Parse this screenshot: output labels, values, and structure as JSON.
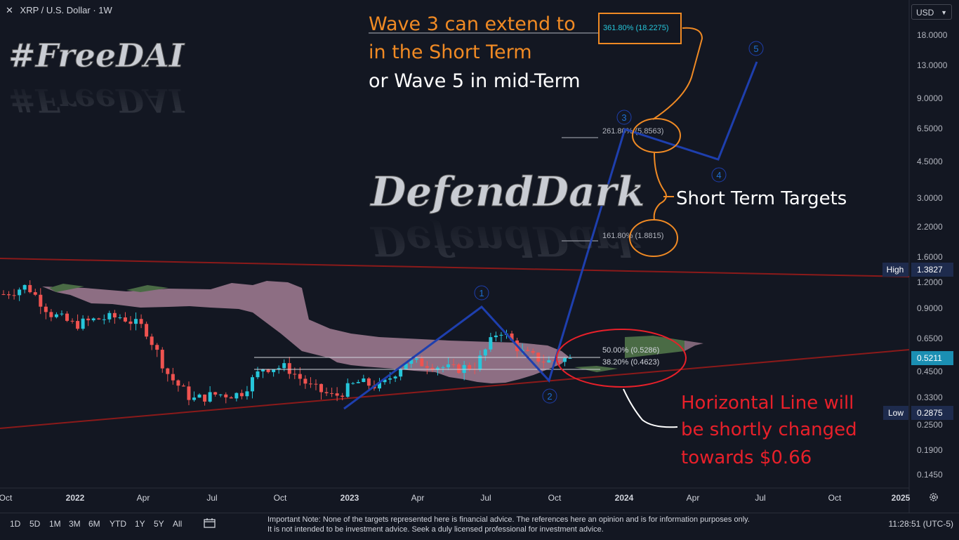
{
  "header": {
    "close_glyph": "✕",
    "symbol_title": "XRP / U.S. Dollar · 1W"
  },
  "currency_select": {
    "value": "USD"
  },
  "price_axis": {
    "ticks": [
      "18.0000",
      "13.0000",
      "9.0000",
      "6.5000",
      "4.5000",
      "3.0000",
      "2.2000",
      "1.6000",
      "1.2000",
      "0.9000",
      "0.6500",
      "0.4500",
      "0.3300",
      "0.2500",
      "0.1900",
      "0.1450"
    ],
    "labels": {
      "high_tag": "High",
      "high_value": "1.3827",
      "current_value": "0.5211",
      "low_tag": "Low",
      "low_value": "0.2875"
    }
  },
  "time_axis": {
    "ticks": [
      "Oct",
      "2022",
      "Apr",
      "Jul",
      "Oct",
      "2023",
      "Apr",
      "Jul",
      "Oct",
      "2024",
      "Apr",
      "Jul",
      "Oct",
      "2025"
    ]
  },
  "annotations": {
    "watermark_top": "#FreeDAI",
    "watermark_mid": "DefendDark",
    "headline_1": "Wave 3 can extend to",
    "headline_2": "in the Short Term",
    "headline_3": "or Wave 5 in mid-Term",
    "short_term": "Short Term Targets",
    "horizontal_1": "Horizontal Line will",
    "horizontal_2": "be shortly changed",
    "horizontal_3": "towards $0.66",
    "fib_3618": "361.80% (18.2275)",
    "fib_2618": "261.80% (5.8563)",
    "fib_1618": "161.80% (1.8815)",
    "fib_50": "50.00% (0.5286)",
    "fib_382": "38.20% (0.4623)",
    "wave_1": "1",
    "wave_2": "2",
    "wave_3": "3",
    "wave_4": "4",
    "wave_5": "5"
  },
  "bottom_bar": {
    "timeframes": [
      "1D",
      "5D",
      "1M",
      "3M",
      "6M",
      "YTD",
      "1Y",
      "5Y",
      "All"
    ],
    "note": "Important Note: None of the targets represented here is financial advice. The references here an opinion and is for information purposes only. It is not intended to be investment advice. Seek a duly licensed professional for investment advice.",
    "clock": "11:28:51 (UTC-5)"
  },
  "colors": {
    "bg": "#131722",
    "up": "#26c6da",
    "down": "#ef5350",
    "cloud": "#d8a5bf",
    "wave": "#1e3fae",
    "accent": "#f08a24",
    "trend": "#8b1a1a",
    "red_text": "#e8202a"
  },
  "chart_data": {
    "type": "candlestick",
    "scale": "log",
    "ylim": [
      0.13,
      24
    ],
    "series": [
      {
        "name": "XRP weekly",
        "points": [
          [
            "2021-10",
            1.05
          ],
          [
            "2021-11",
            1.15
          ],
          [
            "2021-12",
            0.85
          ],
          [
            "2022-01",
            0.75
          ],
          [
            "2022-02",
            0.8
          ],
          [
            "2022-03",
            0.82
          ],
          [
            "2022-04",
            0.72
          ],
          [
            "2022-05",
            0.43
          ],
          [
            "2022-06",
            0.33
          ],
          [
            "2022-07",
            0.35
          ],
          [
            "2022-08",
            0.35
          ],
          [
            "2022-09",
            0.47
          ],
          [
            "2022-10",
            0.47
          ],
          [
            "2022-11",
            0.38
          ],
          [
            "2022-12",
            0.34
          ],
          [
            "2023-01",
            0.4
          ],
          [
            "2023-02",
            0.38
          ],
          [
            "2023-03",
            0.5
          ],
          [
            "2023-04",
            0.49
          ],
          [
            "2023-05",
            0.46
          ],
          [
            "2023-06",
            0.48
          ],
          [
            "2023-07",
            0.72
          ],
          [
            "2023-08",
            0.55
          ],
          [
            "2023-09",
            0.5
          ],
          [
            "2023-10",
            0.5211
          ]
        ]
      }
    ],
    "fibonacci": [
      {
        "level": "38.20%",
        "price": 0.4623
      },
      {
        "level": "50.00%",
        "price": 0.5286
      },
      {
        "level": "161.80%",
        "price": 1.8815
      },
      {
        "level": "261.80%",
        "price": 5.8563
      },
      {
        "level": "361.80%",
        "price": 18.2275
      }
    ],
    "wave_projection": [
      {
        "label": "1",
        "date": "2023-07",
        "price": 0.92
      },
      {
        "label": "2",
        "date": "2023-10",
        "price": 0.41
      },
      {
        "label": "3",
        "date": "2023-12",
        "price": 6.2
      },
      {
        "label": "4",
        "date": "2024-04",
        "price": 4.6
      },
      {
        "label": "5",
        "date": "2024-07",
        "price": 13.5
      }
    ],
    "levels": {
      "high": 1.3827,
      "current": 0.5211,
      "low": 0.2875
    }
  }
}
